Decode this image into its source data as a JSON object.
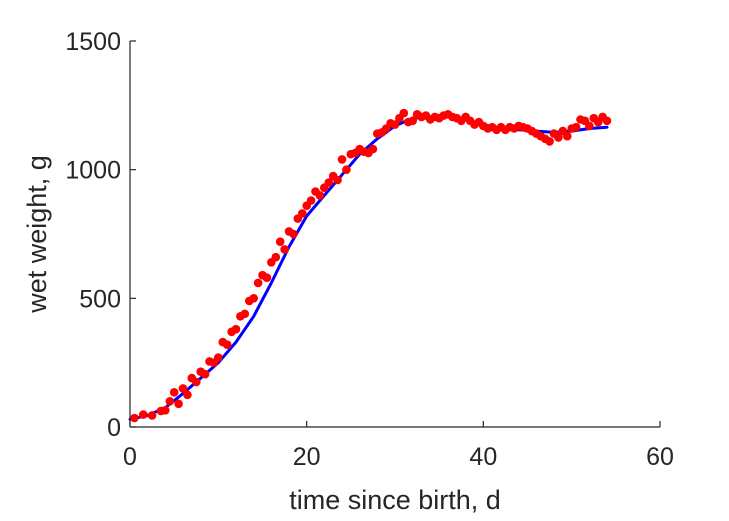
{
  "chart_data": {
    "type": "scatter",
    "title": "",
    "xlabel": "time since birth, d",
    "ylabel": "wet weight, g",
    "xlim": [
      0,
      60
    ],
    "ylim": [
      0,
      1500
    ],
    "xticks": [
      0,
      20,
      40,
      60
    ],
    "yticks": [
      0,
      500,
      1000,
      1500
    ],
    "grid": false,
    "box": "left-bottom",
    "colors": {
      "points": "#ff0000",
      "fit": "#0000ff",
      "axes": "#262626"
    },
    "series": [
      {
        "kind": "points",
        "x": [
          0.5,
          1.5,
          2.5,
          3.5,
          4.0,
          4.5,
          5.0,
          5.5,
          6.0,
          6.5,
          7.0,
          7.5,
          8.0,
          8.5,
          9.0,
          9.5,
          10.0,
          10.5,
          11.0,
          11.5,
          12.0,
          12.5,
          13.0,
          13.5,
          14.0,
          14.5,
          15.0,
          15.5,
          16.0,
          16.5,
          17.0,
          17.5,
          18.0,
          18.5,
          19.0,
          19.5,
          20.0,
          20.5,
          21.0,
          21.5,
          22.0,
          22.5,
          23.0,
          23.5,
          24.0,
          24.5,
          25.0,
          25.5,
          26.0,
          26.5,
          27.0,
          27.5,
          28.0,
          28.5,
          29.0,
          29.5,
          30.0,
          30.5,
          31.0,
          31.5,
          32.0,
          32.5,
          33.0,
          33.5,
          34.0,
          34.5,
          35.0,
          35.5,
          36.0,
          36.5,
          37.0,
          37.5,
          38.0,
          38.5,
          39.0,
          39.5,
          40.0,
          40.5,
          41.0,
          41.5,
          42.0,
          42.5,
          43.0,
          43.5,
          44.0,
          44.5,
          45.0,
          45.5,
          46.0,
          46.5,
          47.0,
          47.5,
          48.0,
          48.5,
          49.0,
          49.5,
          50.0,
          50.5,
          51.0,
          51.5,
          52.0,
          52.5,
          53.0,
          53.5,
          54.0
        ],
        "y": [
          35,
          48,
          45,
          62,
          65,
          100,
          135,
          90,
          150,
          125,
          190,
          175,
          215,
          205,
          255,
          250,
          270,
          330,
          320,
          370,
          380,
          430,
          440,
          490,
          500,
          560,
          590,
          580,
          640,
          660,
          720,
          690,
          760,
          750,
          810,
          830,
          860,
          880,
          915,
          900,
          930,
          950,
          975,
          960,
          1040,
          1000,
          1060,
          1065,
          1080,
          1070,
          1065,
          1080,
          1140,
          1145,
          1160,
          1180,
          1175,
          1200,
          1220,
          1185,
          1190,
          1215,
          1205,
          1210,
          1195,
          1205,
          1200,
          1210,
          1215,
          1205,
          1200,
          1190,
          1205,
          1190,
          1175,
          1185,
          1170,
          1160,
          1165,
          1155,
          1165,
          1155,
          1165,
          1160,
          1170,
          1165,
          1160,
          1150,
          1140,
          1130,
          1120,
          1110,
          1140,
          1125,
          1150,
          1130,
          1160,
          1165,
          1195,
          1190,
          1170,
          1200,
          1185,
          1205,
          1190
        ]
      },
      {
        "kind": "fit",
        "x": [
          0,
          2,
          4,
          6,
          8,
          10,
          12,
          14,
          16,
          18,
          20,
          22,
          24,
          26,
          28,
          30,
          32,
          34,
          36,
          38,
          40,
          42,
          44,
          46,
          48,
          50,
          52,
          54
        ],
        "y": [
          30,
          45,
          75,
          130,
          190,
          250,
          330,
          430,
          560,
          700,
          820,
          900,
          980,
          1060,
          1120,
          1170,
          1200,
          1205,
          1205,
          1195,
          1175,
          1160,
          1155,
          1150,
          1145,
          1150,
          1160,
          1165
        ]
      }
    ]
  }
}
